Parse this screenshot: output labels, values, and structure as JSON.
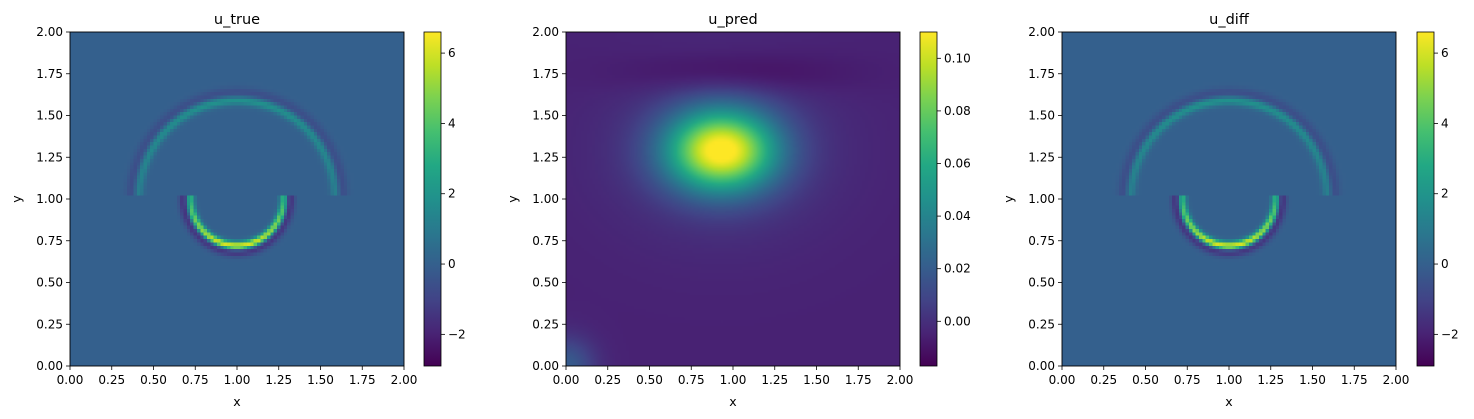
{
  "chart_data": [
    {
      "type": "heatmap",
      "title": "u_true",
      "xlabel": "x",
      "ylabel": "y",
      "xlim": [
        0,
        2
      ],
      "ylim": [
        0,
        2
      ],
      "xticks": [
        "0.00",
        "0.25",
        "0.50",
        "0.75",
        "1.00",
        "1.25",
        "1.50",
        "1.75",
        "2.00"
      ],
      "yticks": [
        "0.00",
        "0.25",
        "0.50",
        "0.75",
        "1.00",
        "1.25",
        "1.50",
        "1.75",
        "2.00"
      ],
      "colormap": "viridis",
      "colorbar": {
        "min": -2.9,
        "max": 6.6,
        "ticks": [
          "−2",
          "0",
          "2",
          "4",
          "6"
        ],
        "tick_values": [
          -2,
          0,
          2,
          4,
          6
        ]
      },
      "field": {
        "background": 0.0,
        "features": [
          {
            "shape": "ring",
            "cx": 1.0,
            "cy": 1.0,
            "r": 0.28,
            "width": 0.03,
            "peak": 6.5,
            "trough": -2.8,
            "y_max": 1.0,
            "note_values": "lower semicircle, bright"
          },
          {
            "shape": "ring",
            "cx": 1.0,
            "cy": 1.0,
            "r": 0.59,
            "width": 0.035,
            "peak": 2.0,
            "trough": -1.2,
            "y_min": 1.05,
            "note_values": "upper semicircle, faint"
          }
        ]
      }
    },
    {
      "type": "heatmap",
      "title": "u_pred",
      "xlabel": "x",
      "ylabel": "y",
      "xlim": [
        0,
        2
      ],
      "ylim": [
        0,
        2
      ],
      "xticks": [
        "0.00",
        "0.25",
        "0.50",
        "0.75",
        "1.00",
        "1.25",
        "1.50",
        "1.75",
        "2.00"
      ],
      "yticks": [
        "0.00",
        "0.25",
        "0.50",
        "0.75",
        "1.00",
        "1.25",
        "1.50",
        "1.75",
        "2.00"
      ],
      "colormap": "viridis",
      "colorbar": {
        "min": -0.017,
        "max": 0.11,
        "ticks": [
          "0.00",
          "0.02",
          "0.04",
          "0.06",
          "0.08",
          "0.10"
        ],
        "tick_values": [
          0,
          0.02,
          0.04,
          0.06,
          0.08,
          0.1
        ]
      },
      "field": {
        "blob": {
          "cx": 0.93,
          "cy": 1.29,
          "peak": 0.105
        },
        "trough": {
          "cx": 1.0,
          "cy": 1.75,
          "value": -0.015
        },
        "corner_bottom_left": 0.02,
        "background": -0.005
      }
    },
    {
      "type": "heatmap",
      "title": "u_diff",
      "xlabel": "x",
      "ylabel": "y",
      "xlim": [
        0,
        2
      ],
      "ylim": [
        0,
        2
      ],
      "xticks": [
        "0.00",
        "0.25",
        "0.50",
        "0.75",
        "1.00",
        "1.25",
        "1.50",
        "1.75",
        "2.00"
      ],
      "yticks": [
        "0.00",
        "0.25",
        "0.50",
        "0.75",
        "1.00",
        "1.25",
        "1.50",
        "1.75",
        "2.00"
      ],
      "colormap": "viridis",
      "colorbar": {
        "min": -2.9,
        "max": 6.6,
        "ticks": [
          "−2",
          "0",
          "2",
          "4",
          "6"
        ],
        "tick_values": [
          -2,
          0,
          2,
          4,
          6
        ]
      },
      "field": {
        "background": 0.0,
        "features": [
          {
            "shape": "ring",
            "cx": 1.0,
            "cy": 1.0,
            "r": 0.28,
            "width": 0.03,
            "peak": 6.45,
            "trough": -2.8,
            "y_max": 1.0
          },
          {
            "shape": "ring",
            "cx": 1.0,
            "cy": 1.0,
            "r": 0.59,
            "width": 0.035,
            "peak": 2.0,
            "trough": -1.2,
            "y_min": 1.05
          }
        ]
      }
    }
  ]
}
